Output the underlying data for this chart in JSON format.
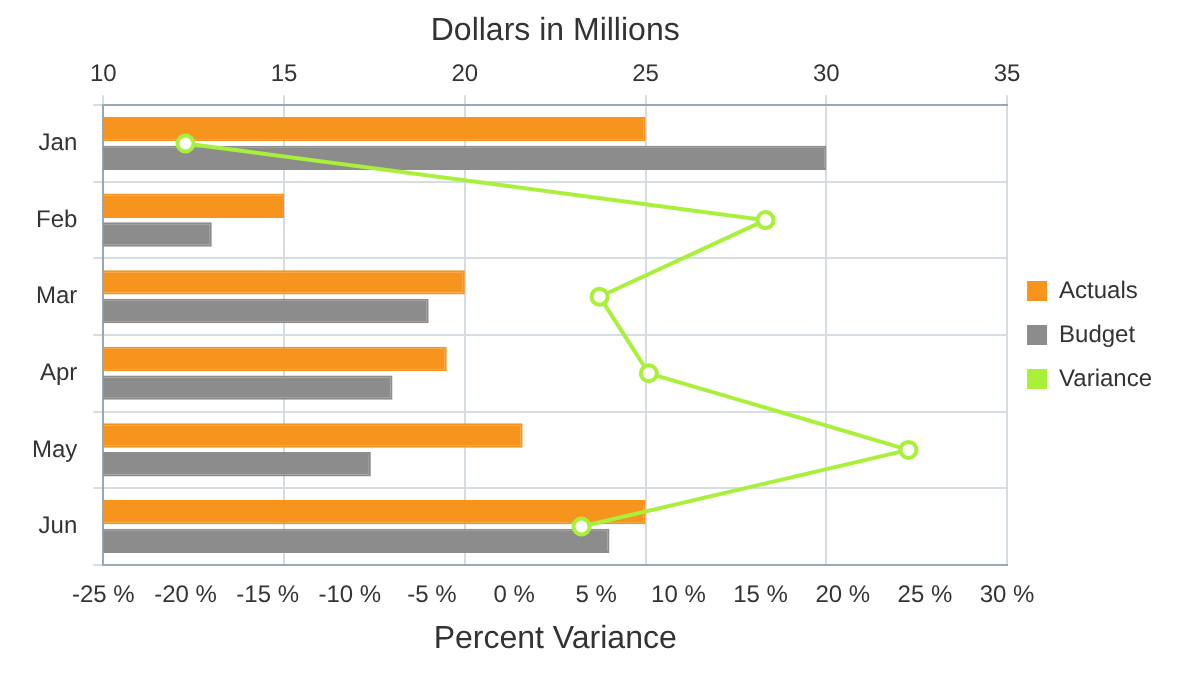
{
  "chart_data": {
    "type": "bar",
    "orientation": "horizontal",
    "xlabel": "Percent Variance",
    "x2label": "Dollars in Millions",
    "categories": [
      "Jan",
      "Feb",
      "Mar",
      "Apr",
      "May",
      "Jun"
    ],
    "series": [
      {
        "name": "Actuals",
        "color": "#f7941d",
        "axis": "x2",
        "values": [
          25,
          15,
          20,
          19.5,
          21.6,
          25
        ]
      },
      {
        "name": "Budget",
        "color": "#8c8c8c",
        "axis": "x2",
        "values": [
          30,
          13,
          19,
          18,
          17.4,
          24
        ]
      },
      {
        "name": "Variance",
        "type": "line",
        "color": "#a8f03a",
        "marker": "circle",
        "values": [
          -20,
          15.3,
          5.2,
          8.2,
          24,
          4.1
        ]
      }
    ],
    "xlim": [
      -25,
      30
    ],
    "xticks": [
      {
        "value": -25,
        "label": "-25 %"
      },
      {
        "value": -20,
        "label": "-20 %"
      },
      {
        "value": -15,
        "label": "-15 %"
      },
      {
        "value": -10,
        "label": "-10 %"
      },
      {
        "value": -5,
        "label": "-5 %"
      },
      {
        "value": 0,
        "label": "0 %"
      },
      {
        "value": 5,
        "label": "5 %"
      },
      {
        "value": 10,
        "label": "10 %"
      },
      {
        "value": 15,
        "label": "15 %"
      },
      {
        "value": 20,
        "label": "20 %"
      },
      {
        "value": 25,
        "label": "25 %"
      },
      {
        "value": 30,
        "label": "30 %"
      }
    ],
    "x2lim": [
      10,
      35
    ],
    "x2ticks": [
      10,
      15,
      20,
      25,
      30,
      35
    ],
    "grid": true,
    "legend": "right"
  }
}
